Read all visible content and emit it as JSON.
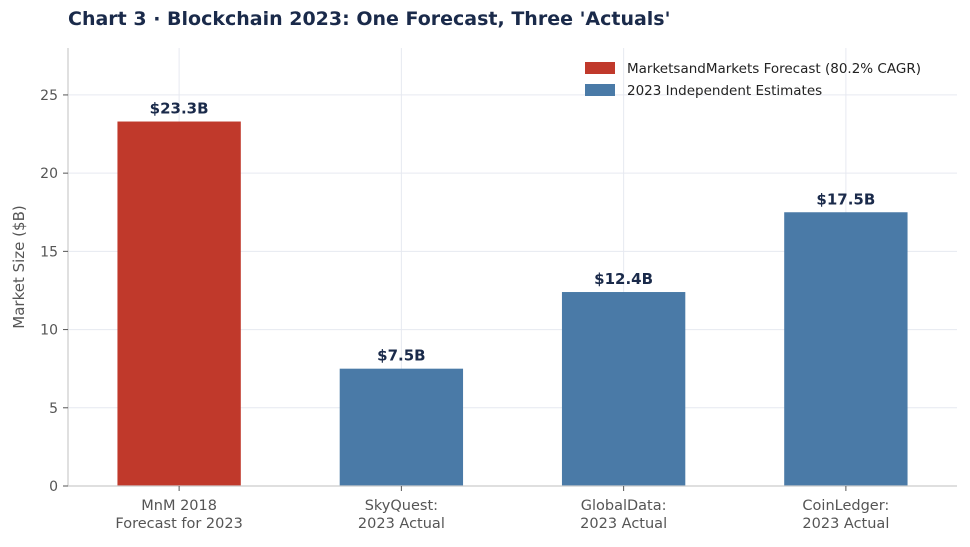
{
  "chart_data": {
    "type": "bar",
    "title": "Chart 3 · Blockchain 2023: One Forecast, Three 'Actuals'",
    "xlabel": "",
    "ylabel": "Market Size ($B)",
    "ylim": [
      0,
      28
    ],
    "yticks": [
      0,
      5,
      10,
      15,
      20,
      25
    ],
    "grid": true,
    "legend_position": "top-right",
    "categories": [
      [
        "MnM 2018",
        "Forecast for 2023"
      ],
      [
        "SkyQuest:",
        "2023 Actual"
      ],
      [
        "GlobalData:",
        "2023 Actual"
      ],
      [
        "CoinLedger:",
        "2023 Actual"
      ]
    ],
    "values": [
      23.3,
      7.5,
      12.4,
      17.5
    ],
    "data_labels": [
      "$23.3B",
      "$7.5B",
      "$12.4B",
      "$17.5B"
    ],
    "bar_series": [
      "forecast",
      "estimate",
      "estimate",
      "estimate"
    ],
    "legend": [
      {
        "key": "forecast",
        "label": "MarketsandMarkets Forecast (80.2% CAGR)",
        "color": "#c0392b"
      },
      {
        "key": "estimate",
        "label": "2023 Independent Estimates",
        "color": "#4a7aa7"
      }
    ]
  }
}
